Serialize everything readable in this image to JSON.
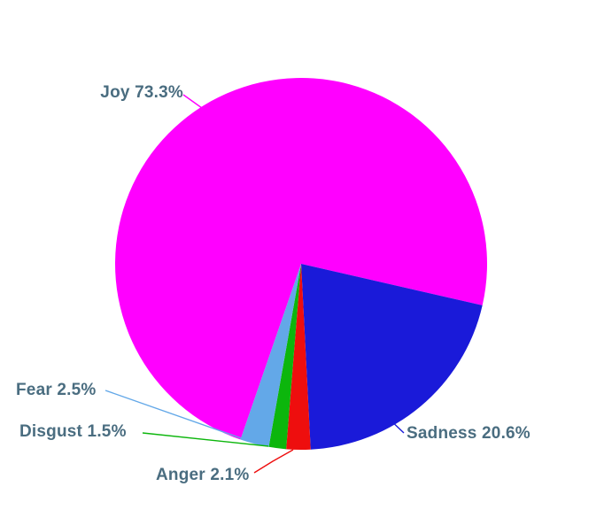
{
  "chart_data": {
    "type": "pie",
    "title": "",
    "legend": "none",
    "background": "#ffffff",
    "text_color": "#4A6D80",
    "slices": [
      {
        "id": "joy",
        "label": "Joy",
        "value": 73.3,
        "display": "Joy 73.3%",
        "color": "#FF00FF"
      },
      {
        "id": "sadness",
        "label": "Sadness",
        "value": 20.6,
        "display": "Sadness 20.6%",
        "color": "#1A1AD9"
      },
      {
        "id": "anger",
        "label": "Anger",
        "value": 2.1,
        "display": "Anger 2.1%",
        "color": "#EE0E0E"
      },
      {
        "id": "disgust",
        "label": "Disgust",
        "value": 1.5,
        "display": "Disgust 1.5%",
        "color": "#0CB60C"
      },
      {
        "id": "fear",
        "label": "Fear",
        "value": 2.5,
        "display": "Fear 2.5%",
        "color": "#63A8E8"
      }
    ]
  }
}
